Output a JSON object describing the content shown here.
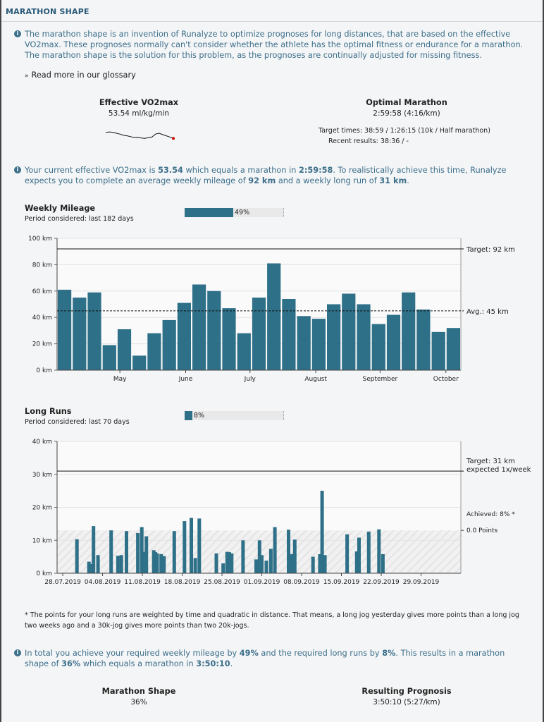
{
  "header": {
    "title": "MARATHON SHAPE"
  },
  "intro": {
    "text": "The marathon shape is an invention of Runalyze to optimize prognoses for long distances, that are based on the effective VO2max. These prognoses normally can't consider whether the athlete has the optimal fitness or endurance for a marathon. The marathon shape is the solution for this problem, as the prognoses are continually adjusted for missing fitness."
  },
  "glossary_link": "Read more in our glossary",
  "vo2max": {
    "title": "Effective VO2max",
    "value": "53.54 ml/kg/min",
    "sparkline": [
      0.45,
      0.42,
      0.44,
      0.5,
      0.55,
      0.62,
      0.65,
      0.7,
      0.75,
      0.74,
      0.78,
      0.8,
      0.76,
      0.72,
      0.55,
      0.5,
      0.58,
      0.65,
      0.72,
      0.8
    ]
  },
  "optimal": {
    "title": "Optimal Marathon",
    "value": "2:59:58 (4:16/km)",
    "target_times": "Target times: 38:59 / 1:26:15 (10k / Half marathon)",
    "recent_results": "Recent results: 38:36 / -"
  },
  "current": {
    "pre1": "Your current effective VO2max is ",
    "vo2": "53.54",
    "pre2": " which equals a marathon in ",
    "time": "2:59:58",
    "pre3": ". To realistically achieve this time, Runalyze expects you to complete an average weekly mileage of ",
    "km": "92 km",
    "pre4": " and a weekly long run of ",
    "lr": "31 km",
    "post": "."
  },
  "weekly": {
    "title": "Weekly Mileage",
    "period": "Period considered: last 182 days",
    "progress_label": "49%",
    "progress": 0.49
  },
  "long_runs": {
    "title": "Long Runs",
    "period": "Period considered: last 70 days",
    "progress_label": "8%",
    "progress": 0.08
  },
  "chart_data": [
    {
      "type": "bar",
      "ylim": [
        0,
        100
      ],
      "yticks": [
        "0 km",
        "20 km",
        "40 km",
        "60 km",
        "80 km",
        "100 km"
      ],
      "ytick_values": [
        0,
        20,
        40,
        60,
        80,
        100
      ],
      "xticks": [
        {
          "label": "May",
          "at": 4.2
        },
        {
          "label": "June",
          "at": 8.6
        },
        {
          "label": "July",
          "at": 12.9
        },
        {
          "label": "August",
          "at": 17.3
        },
        {
          "label": "September",
          "at": 21.6
        },
        {
          "label": "October",
          "at": 26.0
        }
      ],
      "values": [
        61,
        55,
        59,
        19,
        31,
        11,
        28,
        38,
        51,
        65,
        60,
        47,
        28,
        55,
        81,
        54,
        41,
        39,
        50,
        58,
        50,
        35,
        42,
        59,
        46,
        29,
        32
      ],
      "color": "#2e7088",
      "target": {
        "value": 92,
        "label": "Target: 92 km"
      },
      "average": {
        "value": 45,
        "label": "Avg.: 45 km"
      },
      "grid": true
    },
    {
      "type": "bar",
      "ylim": [
        0,
        40
      ],
      "yticks": [
        "0 km",
        "10 km",
        "20 km",
        "30 km",
        "40 km"
      ],
      "ytick_values": [
        0,
        10,
        20,
        30,
        40
      ],
      "xticks": [
        {
          "label": "28.07.2019",
          "at": 0
        },
        {
          "label": "04.08.2019",
          "at": 7
        },
        {
          "label": "11.08.2019",
          "at": 14
        },
        {
          "label": "18.08.2019",
          "at": 21
        },
        {
          "label": "25.08.2019",
          "at": 28
        },
        {
          "label": "01.09.2019",
          "at": 35
        },
        {
          "label": "08.09.2019",
          "at": 42
        },
        {
          "label": "15.09.2019",
          "at": 49
        },
        {
          "label": "22.09.2019",
          "at": 56
        },
        {
          "label": "29.09.2019",
          "at": 63
        }
      ],
      "x_span": [
        -1,
        70
      ],
      "runs": [
        {
          "x": 2.5,
          "v": 10.3
        },
        {
          "x": 4.6,
          "v": 3.5
        },
        {
          "x": 5.0,
          "v": 2.8
        },
        {
          "x": 5.4,
          "v": 14.3
        },
        {
          "x": 6.2,
          "v": 5.5
        },
        {
          "x": 8.5,
          "v": 13.0
        },
        {
          "x": 9.7,
          "v": 5.3
        },
        {
          "x": 10.3,
          "v": 5.5
        },
        {
          "x": 11.2,
          "v": 12.8
        },
        {
          "x": 13.2,
          "v": 12.2
        },
        {
          "x": 13.9,
          "v": 14.0
        },
        {
          "x": 14.3,
          "v": 6.5
        },
        {
          "x": 14.7,
          "v": 11.2
        },
        {
          "x": 16.0,
          "v": 7.0
        },
        {
          "x": 16.3,
          "v": 6.4
        },
        {
          "x": 16.6,
          "v": 6.0
        },
        {
          "x": 17.3,
          "v": 5.8
        },
        {
          "x": 17.8,
          "v": 5.2
        },
        {
          "x": 19.6,
          "v": 12.8
        },
        {
          "x": 21.4,
          "v": 15.8
        },
        {
          "x": 22.6,
          "v": 16.8
        },
        {
          "x": 23.3,
          "v": 4.6
        },
        {
          "x": 24.0,
          "v": 16.6
        },
        {
          "x": 27.0,
          "v": 6.0
        },
        {
          "x": 28.2,
          "v": 3.0
        },
        {
          "x": 28.9,
          "v": 6.5
        },
        {
          "x": 29.3,
          "v": 6.4
        },
        {
          "x": 29.7,
          "v": 6.0
        },
        {
          "x": 31.7,
          "v": 10.0
        },
        {
          "x": 34.0,
          "v": 4.2
        },
        {
          "x": 34.6,
          "v": 10.0
        },
        {
          "x": 35.0,
          "v": 5.5
        },
        {
          "x": 35.8,
          "v": 3.8
        },
        {
          "x": 36.6,
          "v": 7.4
        },
        {
          "x": 37.3,
          "v": 14.0
        },
        {
          "x": 39.7,
          "v": 13.2
        },
        {
          "x": 40.3,
          "v": 5.8
        },
        {
          "x": 40.8,
          "v": 10.2
        },
        {
          "x": 44.0,
          "v": 5.0
        },
        {
          "x": 45.2,
          "v": 5.8
        },
        {
          "x": 45.6,
          "v": 25.0
        },
        {
          "x": 46.1,
          "v": 5.5
        },
        {
          "x": 50.0,
          "v": 11.8
        },
        {
          "x": 51.7,
          "v": 6.6
        },
        {
          "x": 52.1,
          "v": 10.8
        },
        {
          "x": 53.8,
          "v": 12.6
        },
        {
          "x": 55.6,
          "v": 13.3
        },
        {
          "x": 56.3,
          "v": 5.8
        }
      ],
      "color": "#2e7088",
      "target": {
        "value": 31,
        "label": "Target: 31 km",
        "label2": "expected 1x/week"
      },
      "achieved": {
        "value": 13,
        "label": "Achieved: 8% *",
        "label2": "0.0 Points"
      },
      "grid": true
    }
  ],
  "footnote": "* The points for your long runs are weighted by time and quadratic in distance. That means, a long jog yesterday gives more points than a long jog two weeks ago and a 30k-jog gives more points than two 20k-jogs.",
  "total": {
    "pre1": "In total you achieve your required weekly mileage by ",
    "mileage": "49%",
    "pre2": " and the required long runs by ",
    "lr": "8%",
    "pre3": ". This results in a marathon shape of ",
    "shape": "36%",
    "pre4": " which equals a marathon in ",
    "time": "3:50:10",
    "post": "."
  },
  "shape": {
    "title": "Marathon Shape",
    "value": "36%"
  },
  "prognosis": {
    "title": "Resulting Prognosis",
    "value": "3:50:10 (5:27/km)"
  }
}
